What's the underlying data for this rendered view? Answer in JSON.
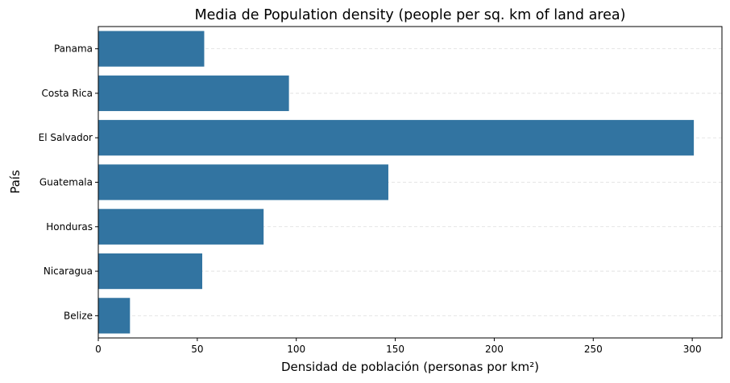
{
  "chart_data": {
    "type": "bar",
    "orientation": "horizontal",
    "title": "Media de Population density (people per sq. km of land area)",
    "xlabel": "Densidad de población (personas por km²)",
    "ylabel": "País",
    "categories": [
      "Panama",
      "Costa Rica",
      "El Salvador",
      "Guatemala",
      "Honduras",
      "Nicaragua",
      "Belize"
    ],
    "values": [
      53.5,
      96.3,
      300.8,
      146.5,
      83.5,
      52.5,
      16.0
    ],
    "xlim": [
      0,
      315
    ],
    "xticks": [
      0,
      50,
      100,
      150,
      200,
      250,
      300
    ],
    "grid": "x-dashed",
    "bar_color": "#3274a1"
  }
}
